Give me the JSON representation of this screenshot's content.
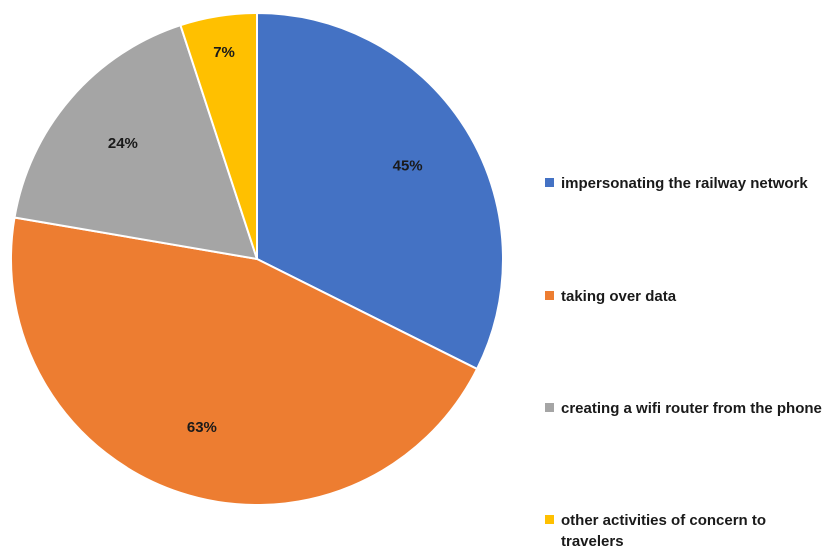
{
  "chart_data": {
    "type": "pie",
    "slices": [
      {
        "label": "impersonating the railway network",
        "value_label": "45%",
        "value": 45,
        "color": "#4472C4"
      },
      {
        "label": "taking over data",
        "value_label": "63%",
        "value": 63,
        "color": "#ED7D31"
      },
      {
        "label": "creating a wifi router from the phone",
        "value_label": "24%",
        "value": 24,
        "color": "#A5A5A5"
      },
      {
        "label": "other activities of concern to travelers",
        "value_label": "7%",
        "value": 7,
        "color": "#FFC000"
      }
    ],
    "legend_position": "right"
  }
}
